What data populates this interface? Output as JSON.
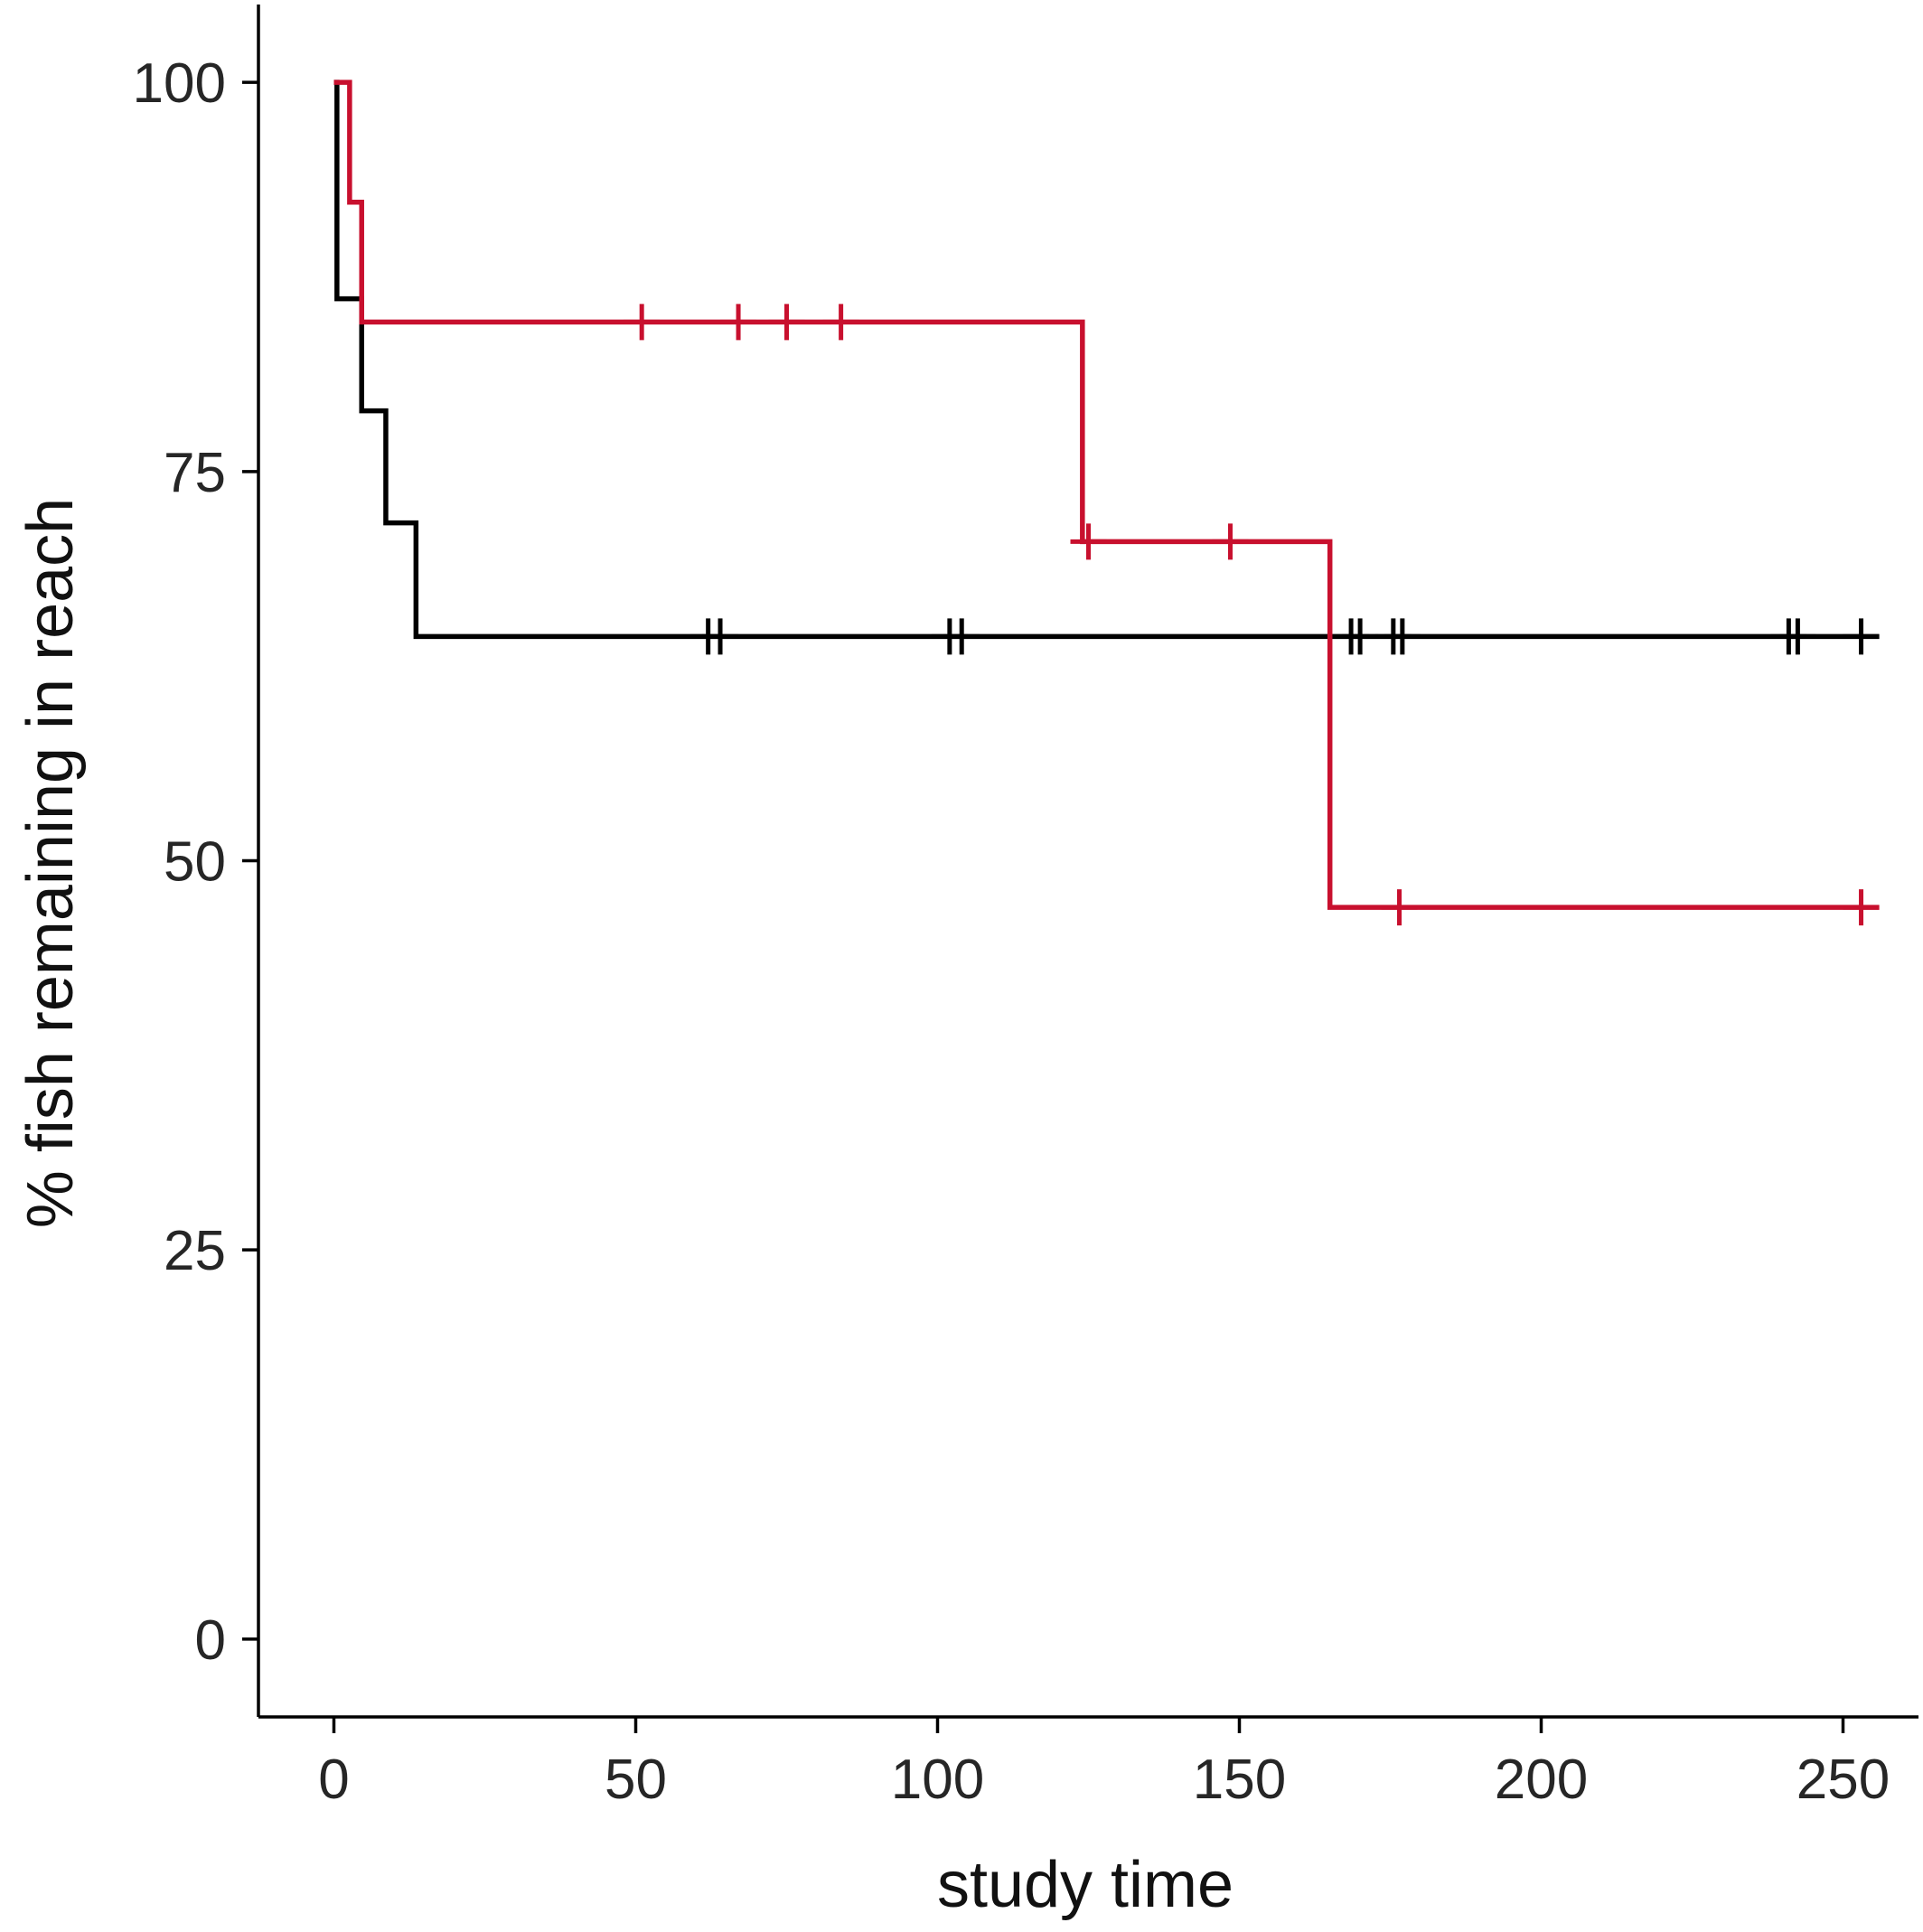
{
  "chart_data": {
    "type": "line",
    "subtype": "step",
    "title": "",
    "xlabel": "study time",
    "ylabel": "% fish remaining in reach",
    "xlim": [
      -12.5,
      262.5
    ],
    "ylim": [
      -5,
      105
    ],
    "x_ticks": [
      {
        "value": 0,
        "label": "0"
      },
      {
        "value": 50,
        "label": "50"
      },
      {
        "value": 100,
        "label": "100"
      },
      {
        "value": 150,
        "label": "150"
      },
      {
        "value": 200,
        "label": "200"
      },
      {
        "value": 250,
        "label": "250"
      }
    ],
    "y_ticks": [
      {
        "value": 0,
        "label": "0"
      },
      {
        "value": 25,
        "label": "25"
      },
      {
        "value": 50,
        "label": "50"
      },
      {
        "value": 75,
        "label": "75"
      },
      {
        "value": 100,
        "label": "100"
      }
    ],
    "grid": false,
    "legend": "none",
    "series": [
      {
        "color": "#000000",
        "steps": [
          [
            0,
            100
          ],
          [
            0.5,
            86.1
          ],
          [
            4.6,
            78.9
          ],
          [
            8.6,
            71.7
          ],
          [
            13.6,
            64.4
          ],
          [
            256,
            64.4
          ]
        ],
        "censor_times": [
          62,
          64,
          102,
          104,
          168.5,
          170,
          175.5,
          177,
          241,
          242.5,
          253
        ]
      },
      {
        "color": "#c8102e",
        "steps": [
          [
            0,
            100
          ],
          [
            2.6,
            92.3
          ],
          [
            4.6,
            84.6
          ],
          [
            124,
            70.5
          ],
          [
            165,
            47
          ],
          [
            256,
            47
          ]
        ],
        "censor_times": [
          51,
          67,
          75,
          84,
          125,
          148.5,
          176.5,
          253
        ]
      }
    ]
  }
}
